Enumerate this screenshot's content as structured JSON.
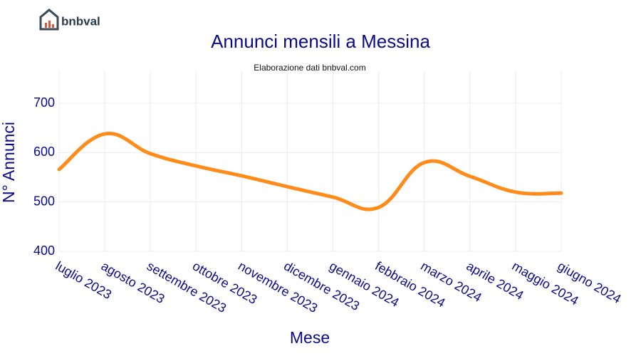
{
  "brand": "bnbval",
  "chart_data": {
    "type": "line",
    "title": "Annunci mensili a Messina",
    "subtitle": "Elaborazione dati bnbval.com",
    "x_label": "Mese",
    "y_label": "N° Annunci",
    "categories": [
      "luglio 2023",
      "agosto 2023",
      "settembre 2023",
      "ottobre 2023",
      "novembre 2023",
      "dicembre 2023",
      "gennaio 2024",
      "febbraio 2024",
      "marzo 2024",
      "aprile 2024",
      "maggio 2024",
      "giugno 2024"
    ],
    "series": [
      {
        "name": "Annunci",
        "color": "#ff8c1a",
        "values": [
          566,
          638,
          598,
          573,
          553,
          531,
          510,
          489,
          580,
          552,
          520,
          518
        ]
      }
    ],
    "ylim": [
      400,
      765
    ],
    "yticks": [
      400,
      500,
      600,
      700
    ],
    "grid": true
  }
}
